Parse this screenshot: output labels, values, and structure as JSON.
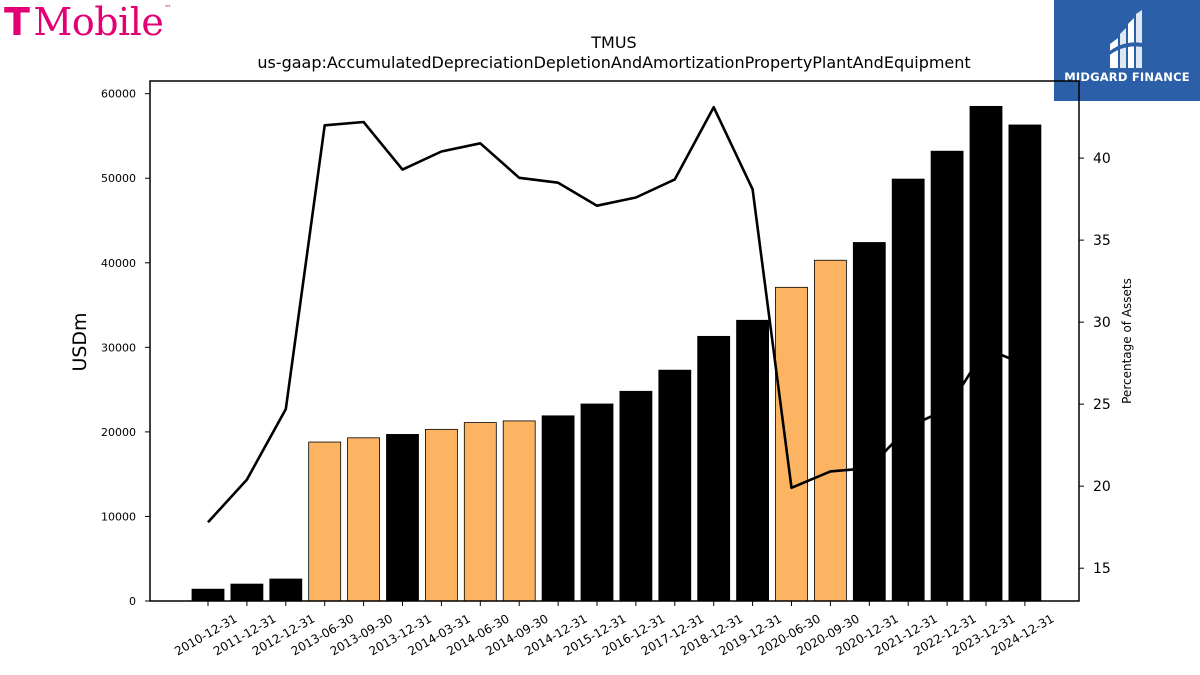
{
  "branding": {
    "company_logo_text": "T Mobile",
    "company_logo_color": "#e20074",
    "publisher_logo_text": "MIDGARD FINANCE",
    "publisher_logo_color": "#2b5fa8"
  },
  "chart_data": {
    "type": "bar",
    "title": "TMUS",
    "subtitle": "us-gaap:AccumulatedDepreciationDepletionAndAmortizationPropertyPlantAndEquipment",
    "ylabel": "USDm",
    "y2label": "Percentage of Assets",
    "ylim": [
      0,
      61500
    ],
    "y2lim": [
      13,
      44.7
    ],
    "yticks": [
      0,
      10000,
      20000,
      30000,
      40000,
      50000,
      60000
    ],
    "y2ticks": [
      15,
      20,
      25,
      30,
      35,
      40
    ],
    "categories": [
      "2010-12-31",
      "2011-12-31",
      "2012-12-31",
      "2013-06-30",
      "2013-09-30",
      "2013-12-31",
      "2014-03-31",
      "2014-06-30",
      "2014-09-30",
      "2014-12-31",
      "2015-12-31",
      "2016-12-31",
      "2017-12-31",
      "2018-12-31",
      "2019-12-31",
      "2020-06-30",
      "2020-09-30",
      "2020-12-31",
      "2021-12-31",
      "2022-12-31",
      "2023-12-31",
      "2024-12-31"
    ],
    "colors": {
      "annual": "#000000",
      "quarterly": "#fdb462",
      "line": "#000000"
    },
    "series": [
      {
        "kind": "bar",
        "values": [
          1400,
          2000,
          2600,
          18800,
          19300,
          19700,
          20300,
          21100,
          21300,
          21900,
          23300,
          24800,
          27300,
          31300,
          33200,
          37100,
          40300,
          42400,
          49900,
          53200,
          58500,
          56300
        ],
        "bar_kind": [
          "annual",
          "annual",
          "annual",
          "quarterly",
          "quarterly",
          "annual",
          "quarterly",
          "quarterly",
          "quarterly",
          "annual",
          "annual",
          "annual",
          "annual",
          "annual",
          "annual",
          "quarterly",
          "quarterly",
          "annual",
          "annual",
          "annual",
          "annual",
          "annual"
        ]
      },
      {
        "kind": "line",
        "axis": "right",
        "values": [
          17.8,
          20.4,
          24.7,
          42.0,
          42.2,
          39.3,
          40.4,
          40.9,
          38.8,
          38.5,
          37.1,
          37.6,
          38.7,
          43.1,
          38.1,
          19.9,
          20.9,
          21.1,
          23.6,
          24.7,
          28.4,
          27.4
        ]
      }
    ]
  }
}
